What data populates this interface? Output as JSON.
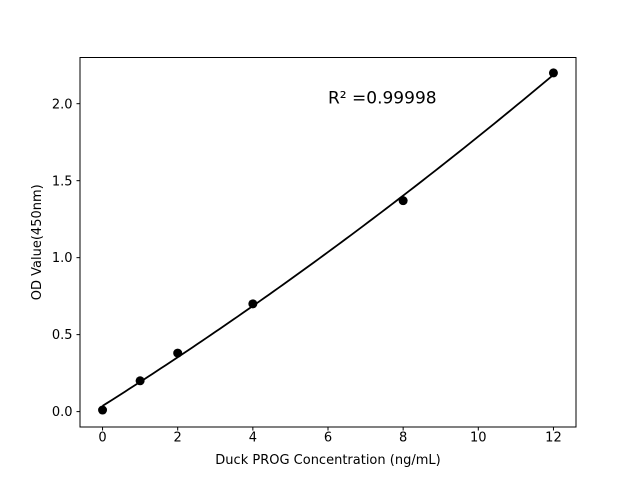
{
  "chart_data": {
    "type": "scatter",
    "title": "",
    "xlabel": "Duck PROG Concentration (ng/mL)",
    "ylabel": "OD Value(450nm)",
    "x": [
      0,
      1,
      2,
      4,
      8,
      12
    ],
    "y": [
      0.01,
      0.2,
      0.38,
      0.7,
      1.37,
      2.2
    ],
    "trendline": {
      "type": "quadratic-least-squares",
      "x_start": 0,
      "x_end": 12
    },
    "annotation": {
      "text": "R² =0.99998",
      "x": 6,
      "y": 2.0
    },
    "xlim": [
      -0.6,
      12.6
    ],
    "ylim": [
      -0.1,
      2.3
    ],
    "x_tick_labels": [
      "0",
      "2",
      "4",
      "6",
      "8",
      "10",
      "12"
    ],
    "y_tick_labels": [
      "0.0",
      "0.5",
      "1.0",
      "1.5",
      "2.0"
    ],
    "grid": false,
    "legend": "none",
    "colors": {
      "background": "#ffffff",
      "line": "#000000",
      "marker": "#000000",
      "text": "#000000"
    }
  }
}
